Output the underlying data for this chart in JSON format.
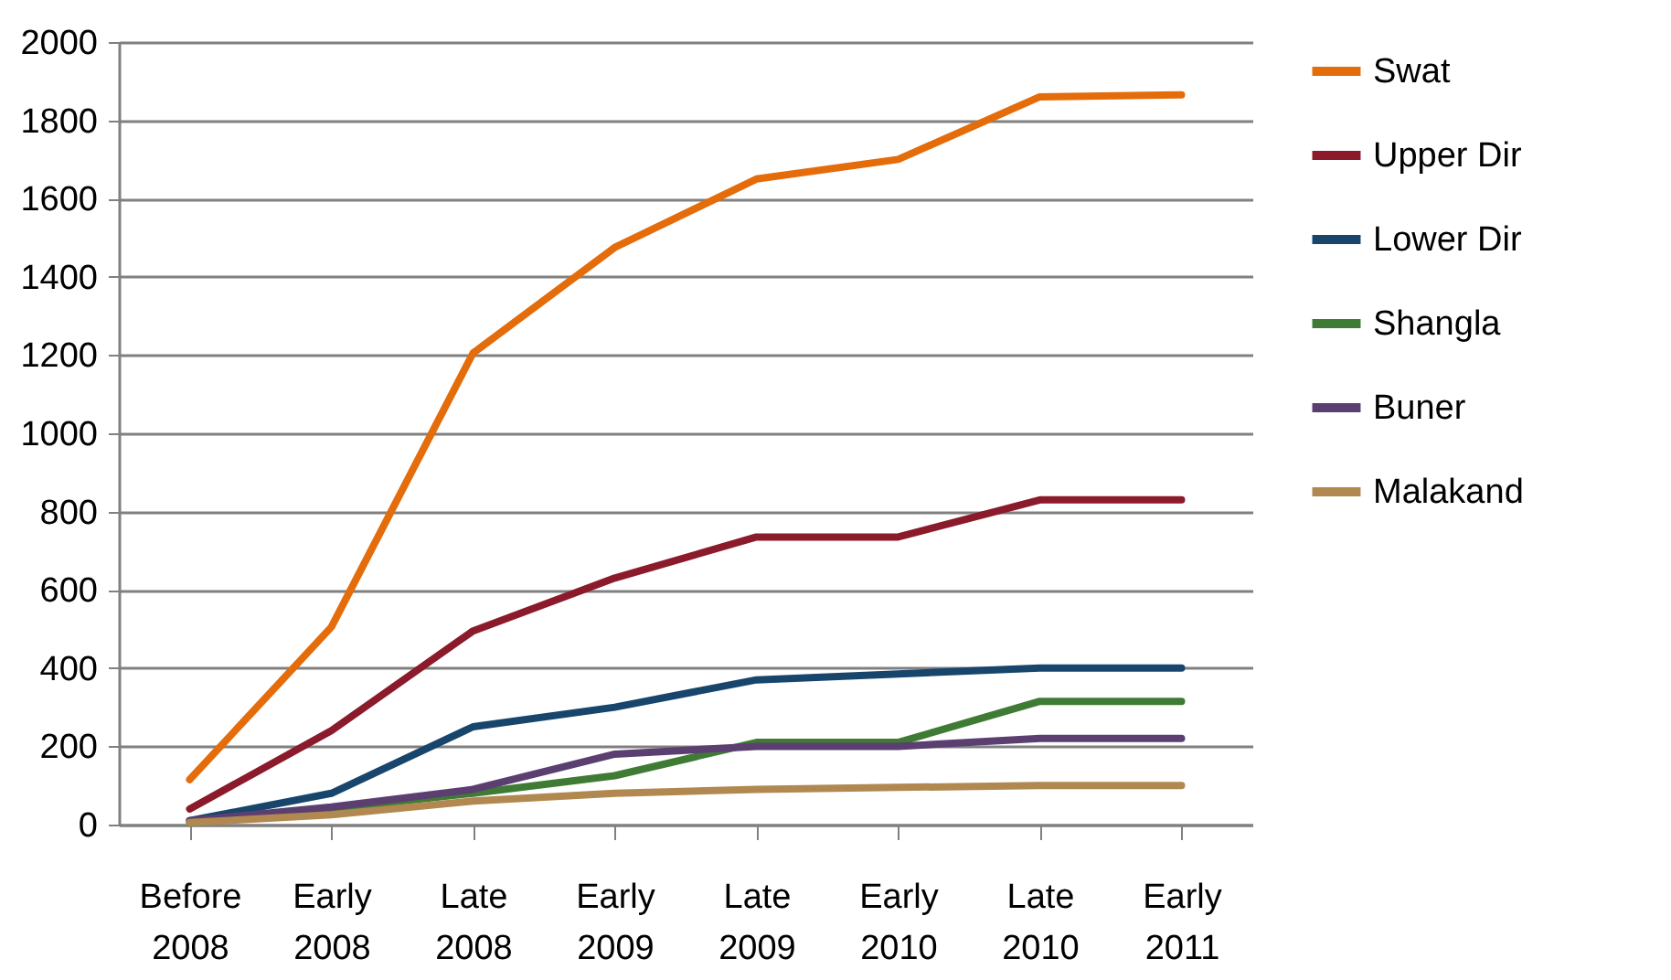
{
  "chart_data": {
    "type": "line",
    "categories": [
      "Before 2008",
      "Early 2008",
      "Late 2008",
      "Early 2009",
      "Late 2009",
      "Early 2010",
      "Late 2010",
      "Early 2011"
    ],
    "series": [
      {
        "name": "Swat",
        "color": "#e46c0a",
        "values": [
          115,
          505,
          1205,
          1475,
          1650,
          1700,
          1860,
          1865
        ]
      },
      {
        "name": "Upper Dir",
        "color": "#8b1a2b",
        "values": [
          40,
          240,
          495,
          630,
          735,
          735,
          830,
          830
        ]
      },
      {
        "name": "Lower Dir",
        "color": "#17456b",
        "values": [
          10,
          80,
          250,
          300,
          370,
          385,
          400,
          400
        ]
      },
      {
        "name": "Shangla",
        "color": "#3f7b34",
        "values": [
          5,
          40,
          80,
          125,
          210,
          210,
          315,
          315
        ]
      },
      {
        "name": "Buner",
        "color": "#5b3f70",
        "values": [
          10,
          45,
          90,
          180,
          200,
          200,
          220,
          220
        ]
      },
      {
        "name": "Malakand",
        "color": "#b08850",
        "values": [
          5,
          25,
          60,
          80,
          90,
          95,
          100,
          100
        ]
      }
    ],
    "ylim": [
      0,
      2000
    ],
    "yticks": [
      0,
      200,
      400,
      600,
      800,
      1000,
      1200,
      1400,
      1600,
      1800,
      2000
    ],
    "grid": "y",
    "legend": "right",
    "marker": "none",
    "line_style": "solid"
  }
}
